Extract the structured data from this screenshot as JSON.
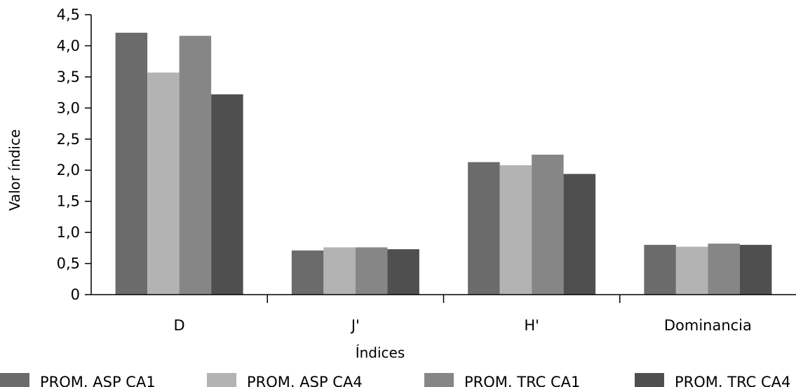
{
  "chart_data": {
    "type": "bar",
    "title": "",
    "xlabel": "Índices",
    "ylabel": "Valor índice",
    "categories": [
      "D",
      "J'",
      "H'",
      "Dominancia"
    ],
    "ylim": [
      0,
      4.5
    ],
    "yticks": [
      "0",
      "0,5",
      "1,0",
      "1,5",
      "2,0",
      "2,5",
      "3,0",
      "3,5",
      "4,0",
      "4,5"
    ],
    "grid": false,
    "legend_position": "bottom",
    "series": [
      {
        "name": "PROM. ASP CA1",
        "color": "#6b6b6b",
        "values": [
          4.21,
          0.71,
          2.13,
          0.8
        ]
      },
      {
        "name": "PROM. ASP CA4",
        "color": "#b3b3b3",
        "values": [
          3.57,
          0.76,
          2.08,
          0.77
        ]
      },
      {
        "name": "PROM. TRC CA1",
        "color": "#868686",
        "values": [
          4.16,
          0.76,
          2.25,
          0.82
        ]
      },
      {
        "name": "PROM. TRC CA4",
        "color": "#4f4f4f",
        "values": [
          3.22,
          0.73,
          1.94,
          0.8
        ]
      }
    ]
  }
}
